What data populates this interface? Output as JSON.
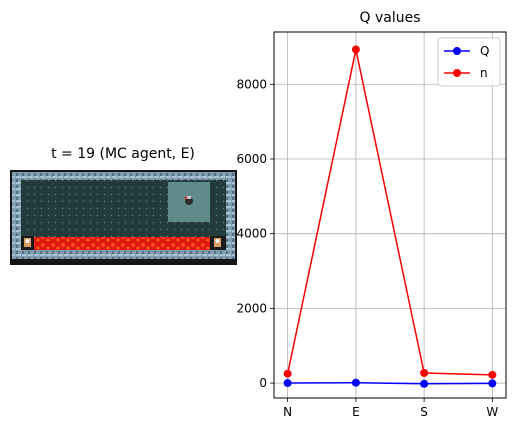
{
  "env": {
    "title": "t = 19 (MC agent, E)"
  },
  "chart_data": {
    "type": "line",
    "title": "Q values",
    "categories": [
      "N",
      "E",
      "S",
      "W"
    ],
    "ylim": [
      -400,
      9400
    ],
    "yticks": [
      0,
      2000,
      4000,
      6000,
      8000
    ],
    "grid": true,
    "legend": "top-right",
    "series": [
      {
        "name": "Q",
        "color": "#0000ff",
        "values": [
          0,
          10,
          -20,
          -10
        ]
      },
      {
        "name": "n",
        "color": "#ff0000",
        "values": [
          250,
          8930,
          270,
          220
        ]
      }
    ]
  }
}
